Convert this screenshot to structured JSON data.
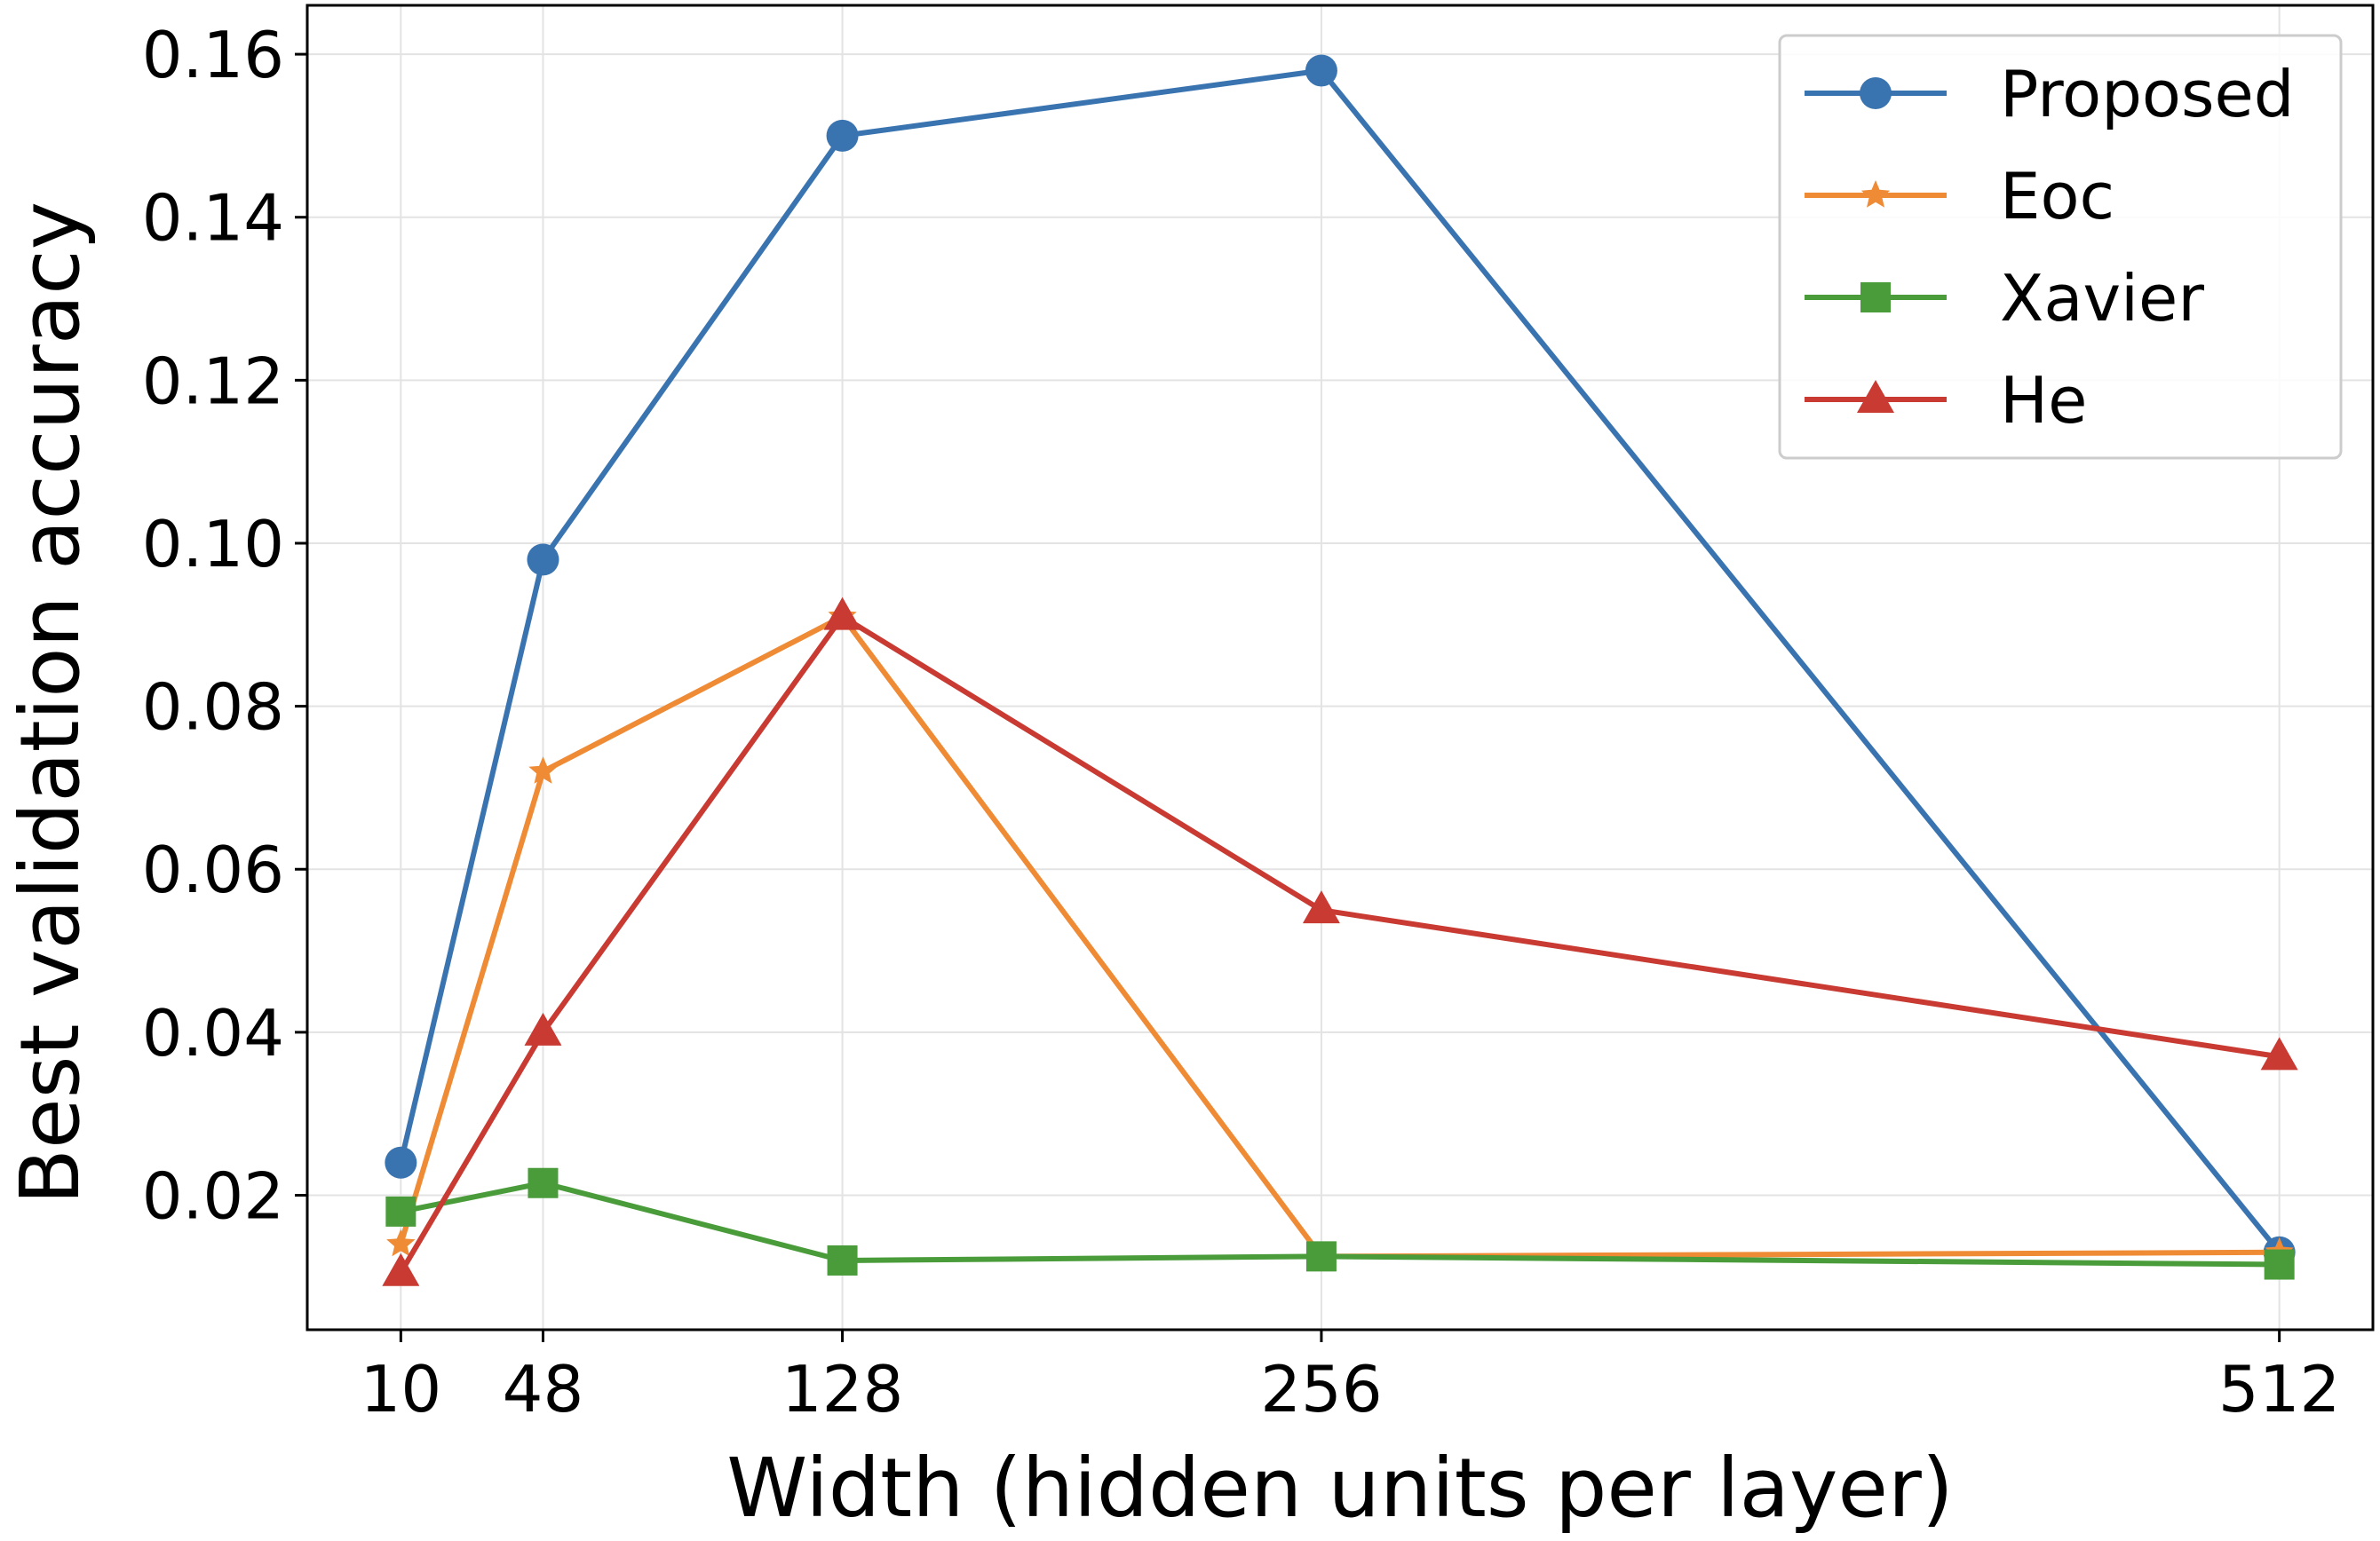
{
  "chart_data": {
    "type": "line",
    "xlabel": "Width (hidden units per layer)",
    "ylabel": "Best validation accuracy",
    "x": [
      10,
      48,
      128,
      256,
      512
    ],
    "xticks": [
      "10",
      "48",
      "128",
      "256",
      "512"
    ],
    "yticks": [
      "0.02",
      "0.04",
      "0.06",
      "0.08",
      "0.10",
      "0.12",
      "0.14",
      "0.16"
    ],
    "ytick_values": [
      0.02,
      0.04,
      0.06,
      0.08,
      0.1,
      0.12,
      0.14,
      0.16
    ],
    "xlim": [
      -15,
      537
    ],
    "ylim": [
      0.0035,
      0.166
    ],
    "grid": true,
    "legend": "top-right",
    "series": [
      {
        "name": "Proposed",
        "marker": "circle",
        "color": "#3a74b0",
        "values": [
          0.024,
          0.098,
          0.15,
          0.158,
          0.013
        ]
      },
      {
        "name": "Eoc",
        "marker": "star",
        "color": "#ef8a35",
        "values": [
          0.014,
          0.072,
          0.091,
          0.0125,
          0.013
        ]
      },
      {
        "name": "Xavier",
        "marker": "square",
        "color": "#4a9c3b",
        "values": [
          0.018,
          0.0215,
          0.012,
          0.0125,
          0.0115
        ]
      },
      {
        "name": "He",
        "marker": "triangle",
        "color": "#c83a32",
        "values": [
          0.0105,
          0.04,
          0.091,
          0.055,
          0.037
        ]
      }
    ]
  }
}
